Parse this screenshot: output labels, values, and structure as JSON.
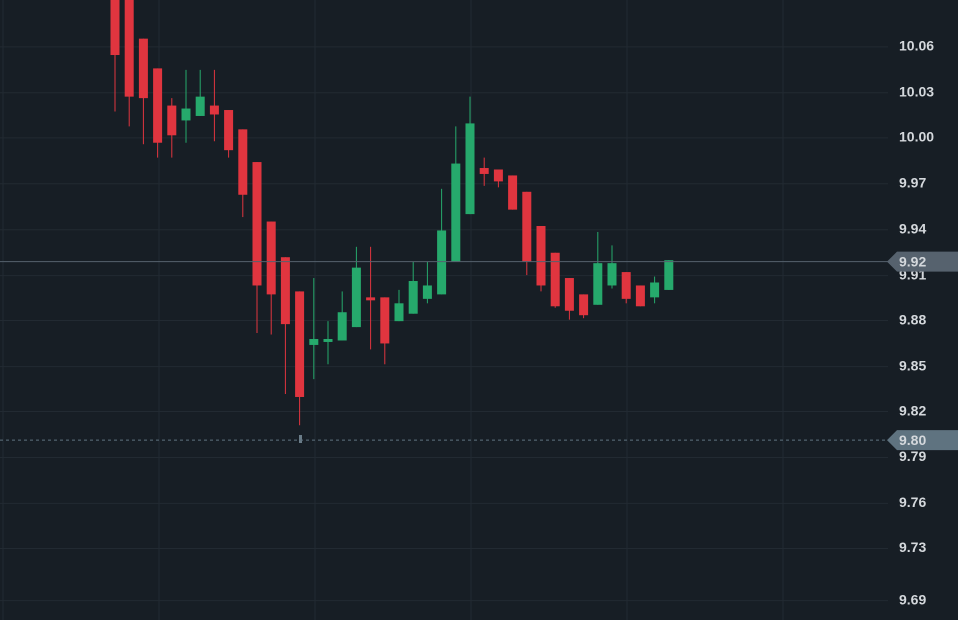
{
  "chart_data": {
    "type": "candlestick",
    "up_color": "#26a96c",
    "down_color": "#e0353f",
    "ylim": [
      9.679,
      10.096
    ],
    "yticks": [
      {
        "value": 10.0645,
        "label": "10.06"
      },
      {
        "value": 10.0336,
        "label": "10.03"
      },
      {
        "value": 10.0033,
        "label": "10.00"
      },
      {
        "value": 9.9724,
        "label": "9.97"
      },
      {
        "value": 9.9415,
        "label": "9.94"
      },
      {
        "value": 9.9106,
        "label": "9.91"
      },
      {
        "value": 9.8804,
        "label": "9.88"
      },
      {
        "value": 9.8494,
        "label": "9.85"
      },
      {
        "value": 9.8192,
        "label": "9.82"
      },
      {
        "value": 9.7883,
        "label": "9.79"
      },
      {
        "value": 9.7574,
        "label": "9.76"
      },
      {
        "value": 9.7271,
        "label": "9.73"
      },
      {
        "value": 9.692,
        "label": "9.69"
      }
    ],
    "grid": true,
    "price_lines": [
      {
        "price": 9.92,
        "color": "#56626e",
        "style": "solid"
      },
      {
        "price": {
          "value": 9.8,
          "label": "9.80"
        },
        "color": "#5f7380",
        "style": "dashed"
      }
    ],
    "candles": [
      {
        "open": 10.096,
        "high": 10.096,
        "low": 10.021,
        "close": 10.059
      },
      {
        "open": 10.096,
        "high": 10.096,
        "low": 10.011,
        "close": 10.031
      },
      {
        "open": 10.07,
        "high": 10.07,
        "low": 9.999,
        "close": 10.03
      },
      {
        "open": 10.05,
        "high": 10.05,
        "low": 9.99,
        "close": 10.0
      },
      {
        "open": 10.025,
        "high": 10.03,
        "low": 9.99,
        "close": 10.005
      },
      {
        "open": 10.015,
        "high": 10.049,
        "low": 10.0,
        "close": 10.023
      },
      {
        "open": 10.018,
        "high": 10.049,
        "low": 10.018,
        "close": 10.031
      },
      {
        "open": 10.025,
        "high": 10.049,
        "low": 10.001,
        "close": 10.019
      },
      {
        "open": 10.022,
        "high": 10.022,
        "low": 9.99,
        "close": 9.995
      },
      {
        "open": 10.009,
        "high": 10.009,
        "low": 9.95,
        "close": 9.965
      },
      {
        "open": 9.987,
        "high": 9.987,
        "low": 9.872,
        "close": 9.904
      },
      {
        "open": 9.947,
        "high": 9.947,
        "low": 9.871,
        "close": 9.898
      },
      {
        "open": 9.923,
        "high": 9.923,
        "low": 9.831,
        "close": 9.878
      },
      {
        "open": 9.9,
        "high": 9.9,
        "low": 9.81,
        "close": 9.829
      },
      {
        "open": 9.864,
        "high": 9.909,
        "low": 9.841,
        "close": 9.868
      },
      {
        "open": 9.866,
        "high": 9.88,
        "low": 9.851,
        "close": 9.868
      },
      {
        "open": 9.867,
        "high": 9.9,
        "low": 9.867,
        "close": 9.886
      },
      {
        "open": 9.876,
        "high": 9.93,
        "low": 9.876,
        "close": 9.916
      },
      {
        "open": 9.896,
        "high": 9.93,
        "low": 9.861,
        "close": 9.894
      },
      {
        "open": 9.896,
        "high": 9.896,
        "low": 9.851,
        "close": 9.865
      },
      {
        "open": 9.88,
        "high": 9.901,
        "low": 9.88,
        "close": 9.892
      },
      {
        "open": 9.885,
        "high": 9.92,
        "low": 9.885,
        "close": 9.907
      },
      {
        "open": 9.895,
        "high": 9.92,
        "low": 9.892,
        "close": 9.904
      },
      {
        "open": 9.898,
        "high": 9.969,
        "low": 9.898,
        "close": 9.941
      },
      {
        "open": 9.92,
        "high": 10.011,
        "low": 9.92,
        "close": 9.986
      },
      {
        "open": 9.952,
        "high": 10.031,
        "low": 9.952,
        "close": 10.013
      },
      {
        "open": 9.983,
        "high": 9.99,
        "low": 9.971,
        "close": 9.979
      },
      {
        "open": 9.982,
        "high": 9.982,
        "low": 9.97,
        "close": 9.974
      },
      {
        "open": 9.978,
        "high": 9.978,
        "low": 9.955,
        "close": 9.955
      },
      {
        "open": 9.967,
        "high": 9.967,
        "low": 9.911,
        "close": 9.92
      },
      {
        "open": 9.944,
        "high": 9.944,
        "low": 9.9,
        "close": 9.904
      },
      {
        "open": 9.926,
        "high": 9.926,
        "low": 9.889,
        "close": 9.89
      },
      {
        "open": 9.909,
        "high": 9.909,
        "low": 9.881,
        "close": 9.887
      },
      {
        "open": 9.898,
        "high": 9.898,
        "low": 9.882,
        "close": 9.884
      },
      {
        "open": 9.891,
        "high": 9.94,
        "low": 9.891,
        "close": 9.919
      },
      {
        "open": 9.904,
        "high": 9.931,
        "low": 9.902,
        "close": 9.919
      },
      {
        "open": 9.913,
        "high": 9.913,
        "low": 9.892,
        "close": 9.895
      },
      {
        "open": 9.904,
        "high": 9.904,
        "low": 9.89,
        "close": 9.89
      },
      {
        "open": 9.896,
        "high": 9.91,
        "low": 9.892,
        "close": 9.906
      },
      {
        "open": 9.901,
        "high": 9.921,
        "low": 9.901,
        "close": 9.921
      }
    ]
  }
}
